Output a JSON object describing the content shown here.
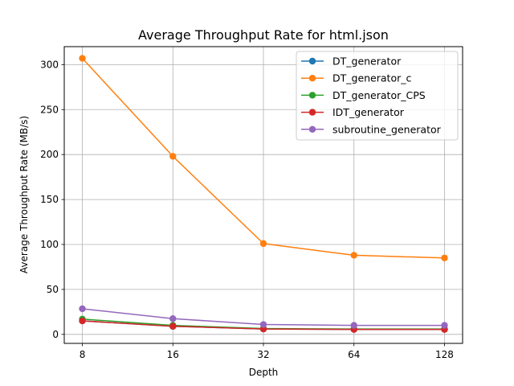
{
  "chart_data": {
    "type": "line",
    "title": "Average Throughput Rate for html.json",
    "xlabel": "Depth",
    "ylabel": "Average Throughput Rate (MB/s)",
    "x_scale": "log2",
    "x": [
      8,
      16,
      32,
      64,
      128
    ],
    "x_tick_labels": [
      "8",
      "16",
      "32",
      "64",
      "128"
    ],
    "ylim": [
      -10,
      320
    ],
    "y_ticks": [
      0,
      50,
      100,
      150,
      200,
      250,
      300
    ],
    "grid": true,
    "legend_position": "top-right",
    "series": [
      {
        "name": "DT_generator",
        "color": "#1f77b4",
        "values": [
          15,
          9,
          6,
          5.5,
          5.5
        ]
      },
      {
        "name": "DT_generator_c",
        "color": "#ff7f0e",
        "values": [
          307,
          198,
          101,
          88,
          85
        ]
      },
      {
        "name": "DT_generator_CPS",
        "color": "#2ca02c",
        "values": [
          17,
          10,
          6.5,
          6,
          6
        ]
      },
      {
        "name": "IDT_generator",
        "color": "#d62728",
        "values": [
          15,
          9,
          6,
          5.5,
          5.5
        ]
      },
      {
        "name": "subroutine_generator",
        "color": "#9467bd",
        "values": [
          28.5,
          17.5,
          11,
          10,
          10
        ]
      }
    ]
  }
}
